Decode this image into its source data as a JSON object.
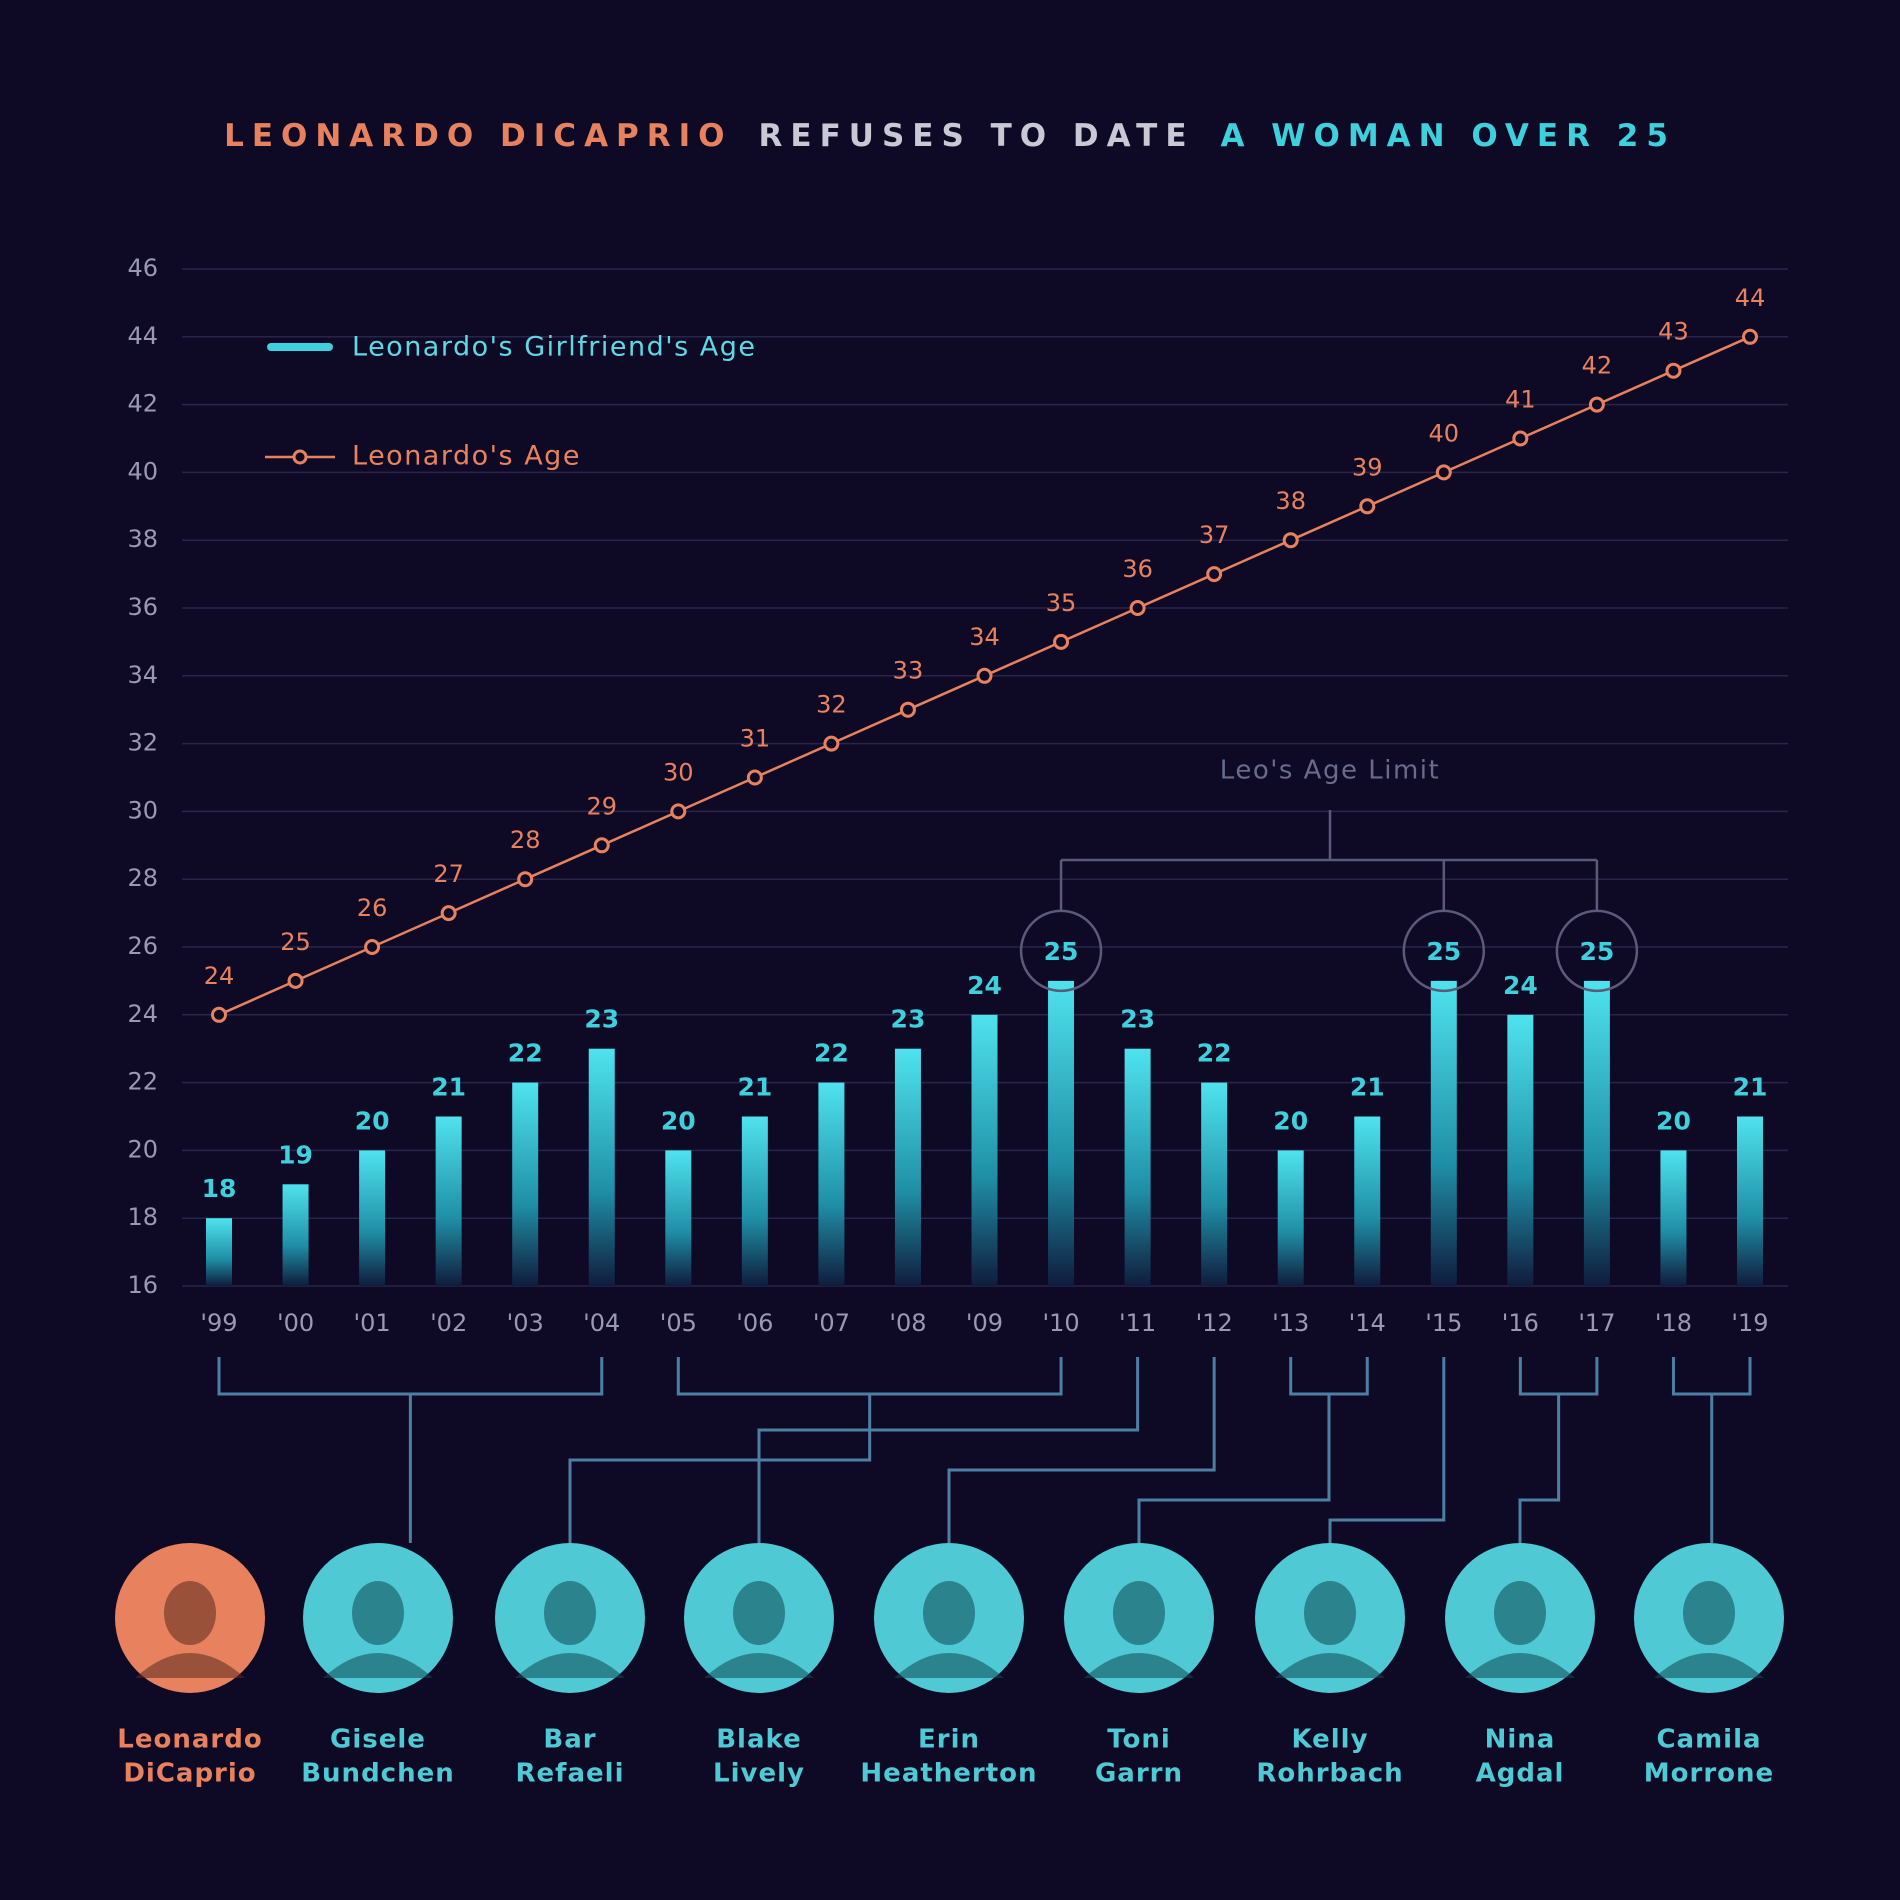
{
  "chart_data": {
    "type": "bar",
    "title_parts": [
      "LEONARDO DICAPRIO",
      "REFUSES TO DATE",
      "A WOMAN OVER 25"
    ],
    "title_colors": [
      "#e8825e",
      "#c9c9d6",
      "#3ed0dc"
    ],
    "categories": [
      "'99",
      "'00",
      "'01",
      "'02",
      "'03",
      "'04",
      "'05",
      "'06",
      "'07",
      "'08",
      "'09",
      "'10",
      "'11",
      "'12",
      "'13",
      "'14",
      "'15",
      "'16",
      "'17",
      "'18",
      "'19"
    ],
    "series": [
      {
        "name": "Leonardo's Girlfriend's Age",
        "type": "bar",
        "color": "#3ed0dc",
        "values": [
          18,
          19,
          20,
          21,
          22,
          23,
          20,
          21,
          22,
          23,
          24,
          25,
          23,
          22,
          20,
          21,
          25,
          24,
          25,
          20,
          21
        ]
      },
      {
        "name": "Leonardo's Age",
        "type": "line",
        "color": "#e8825e",
        "values": [
          24,
          25,
          26,
          27,
          28,
          29,
          30,
          31,
          32,
          33,
          34,
          35,
          36,
          37,
          38,
          39,
          40,
          41,
          42,
          43,
          44
        ]
      }
    ],
    "ylim": [
      16,
      46
    ],
    "yticks": [
      16,
      18,
      20,
      22,
      24,
      26,
      28,
      30,
      32,
      34,
      36,
      38,
      40,
      42,
      44,
      46
    ],
    "grid": true,
    "annotation": "Leo's Age Limit",
    "people": [
      [
        "Leonardo",
        "DiCaprio"
      ],
      [
        "Gisele",
        "Bundchen"
      ],
      [
        "Bar",
        "Refaeli"
      ],
      [
        "Blake",
        "Lively"
      ],
      [
        "Erin",
        "Heatherton"
      ],
      [
        "Toni",
        "Garrn"
      ],
      [
        "Kelly",
        "Rohrbach"
      ],
      [
        "Nina",
        "Agdal"
      ],
      [
        "Camila",
        "Morrone"
      ]
    ]
  }
}
